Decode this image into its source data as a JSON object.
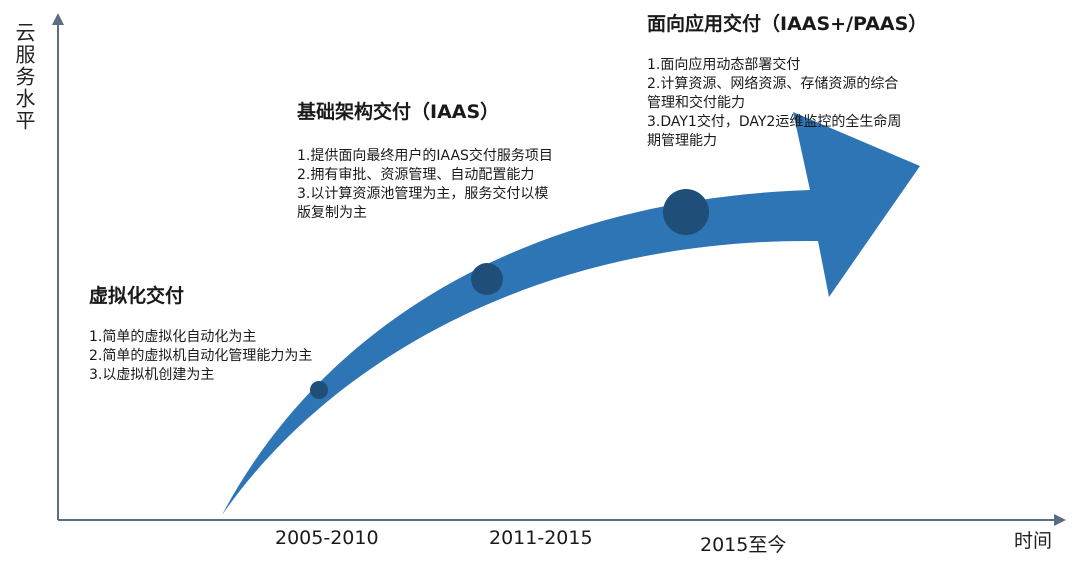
{
  "axes": {
    "y_label": "云服务水平",
    "x_label": "时间"
  },
  "periods": [
    "2005-2010",
    "2011-2015",
    "2015至今"
  ],
  "stages": [
    {
      "title": "虚拟化交付",
      "items": [
        "1.简单的虚拟化自动化为主",
        "2.简单的虚拟机自动化管理能力为主",
        "3.以虚拟机创建为主"
      ]
    },
    {
      "title": "基础架构交付（IAAS）",
      "items": [
        "1.提供面向最终用户的IAAS交付服务项目",
        "2.拥有审批、资源管理、自动配置能力",
        "3.以计算资源池管理为主，服务交付以模",
        "版复制为主"
      ]
    },
    {
      "title": "面向应用交付（IAAS+/PAAS）",
      "items": [
        "1.面向应用动态部署交付",
        "2.计算资源、网络资源、存储资源的综合",
        "管理和交付能力",
        "3.DAY1交付，DAY2运维监控的全生命周",
        "期管理能力"
      ]
    }
  ],
  "colors": {
    "arrow": "#2e75b6",
    "dot": "#1f4e79",
    "axis": "#5a6e82"
  }
}
